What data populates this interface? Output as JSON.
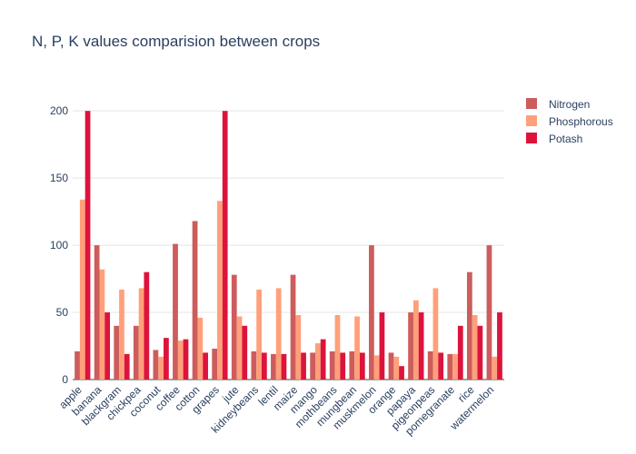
{
  "chart_data": {
    "type": "bar",
    "title": "N, P, K values comparision between crops",
    "xlabel": "",
    "ylabel": "",
    "ylim": [
      0,
      215
    ],
    "yticks": [
      0,
      50,
      100,
      150,
      200
    ],
    "grid": true,
    "legend_position": "top-right",
    "categories": [
      "apple",
      "banana",
      "blackgram",
      "chickpea",
      "coconut",
      "coffee",
      "cotton",
      "grapes",
      "jute",
      "kidneybeans",
      "lentil",
      "maize",
      "mango",
      "mothbeans",
      "mungbean",
      "muskmelon",
      "orange",
      "papaya",
      "pigeonpeas",
      "pomegranate",
      "rice",
      "watermelon"
    ],
    "series": [
      {
        "name": "Nitrogen",
        "color": "#cd5c5c",
        "values": [
          21,
          100,
          40,
          40,
          22,
          101,
          118,
          23,
          78,
          21,
          19,
          78,
          20,
          21,
          21,
          100,
          20,
          50,
          21,
          19,
          80,
          100
        ]
      },
      {
        "name": "Phosphorous",
        "color": "#ffa07a",
        "values": [
          134,
          82,
          67,
          68,
          17,
          29,
          46,
          133,
          47,
          67,
          68,
          48,
          27,
          48,
          47,
          18,
          17,
          59,
          68,
          19,
          48,
          17
        ]
      },
      {
        "name": "Potash",
        "color": "#dc143c",
        "values": [
          200,
          50,
          19,
          80,
          31,
          30,
          20,
          200,
          40,
          20,
          19,
          20,
          30,
          20,
          20,
          50,
          10,
          50,
          20,
          40,
          40,
          50
        ]
      }
    ]
  }
}
